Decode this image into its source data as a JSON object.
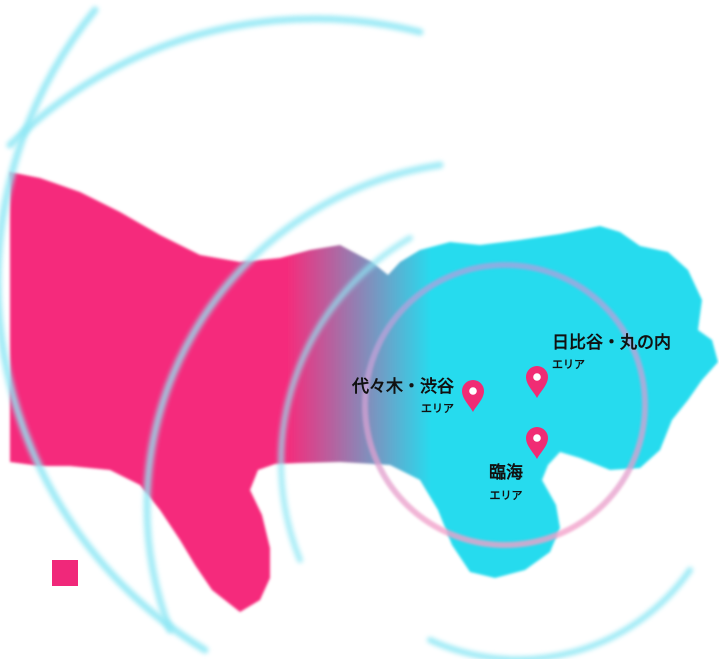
{
  "colors": {
    "west_land": "#f52c7c",
    "east_land": "#27dbee",
    "ring": "#7fe3f2",
    "pin": "#f02c74",
    "text": "#111111"
  },
  "areas": [
    {
      "name": "代々木・渋谷",
      "sub": "エリア"
    },
    {
      "name": "日比谷・丸の内",
      "sub": "エリア"
    },
    {
      "name": "臨海",
      "sub": "エリア"
    }
  ]
}
